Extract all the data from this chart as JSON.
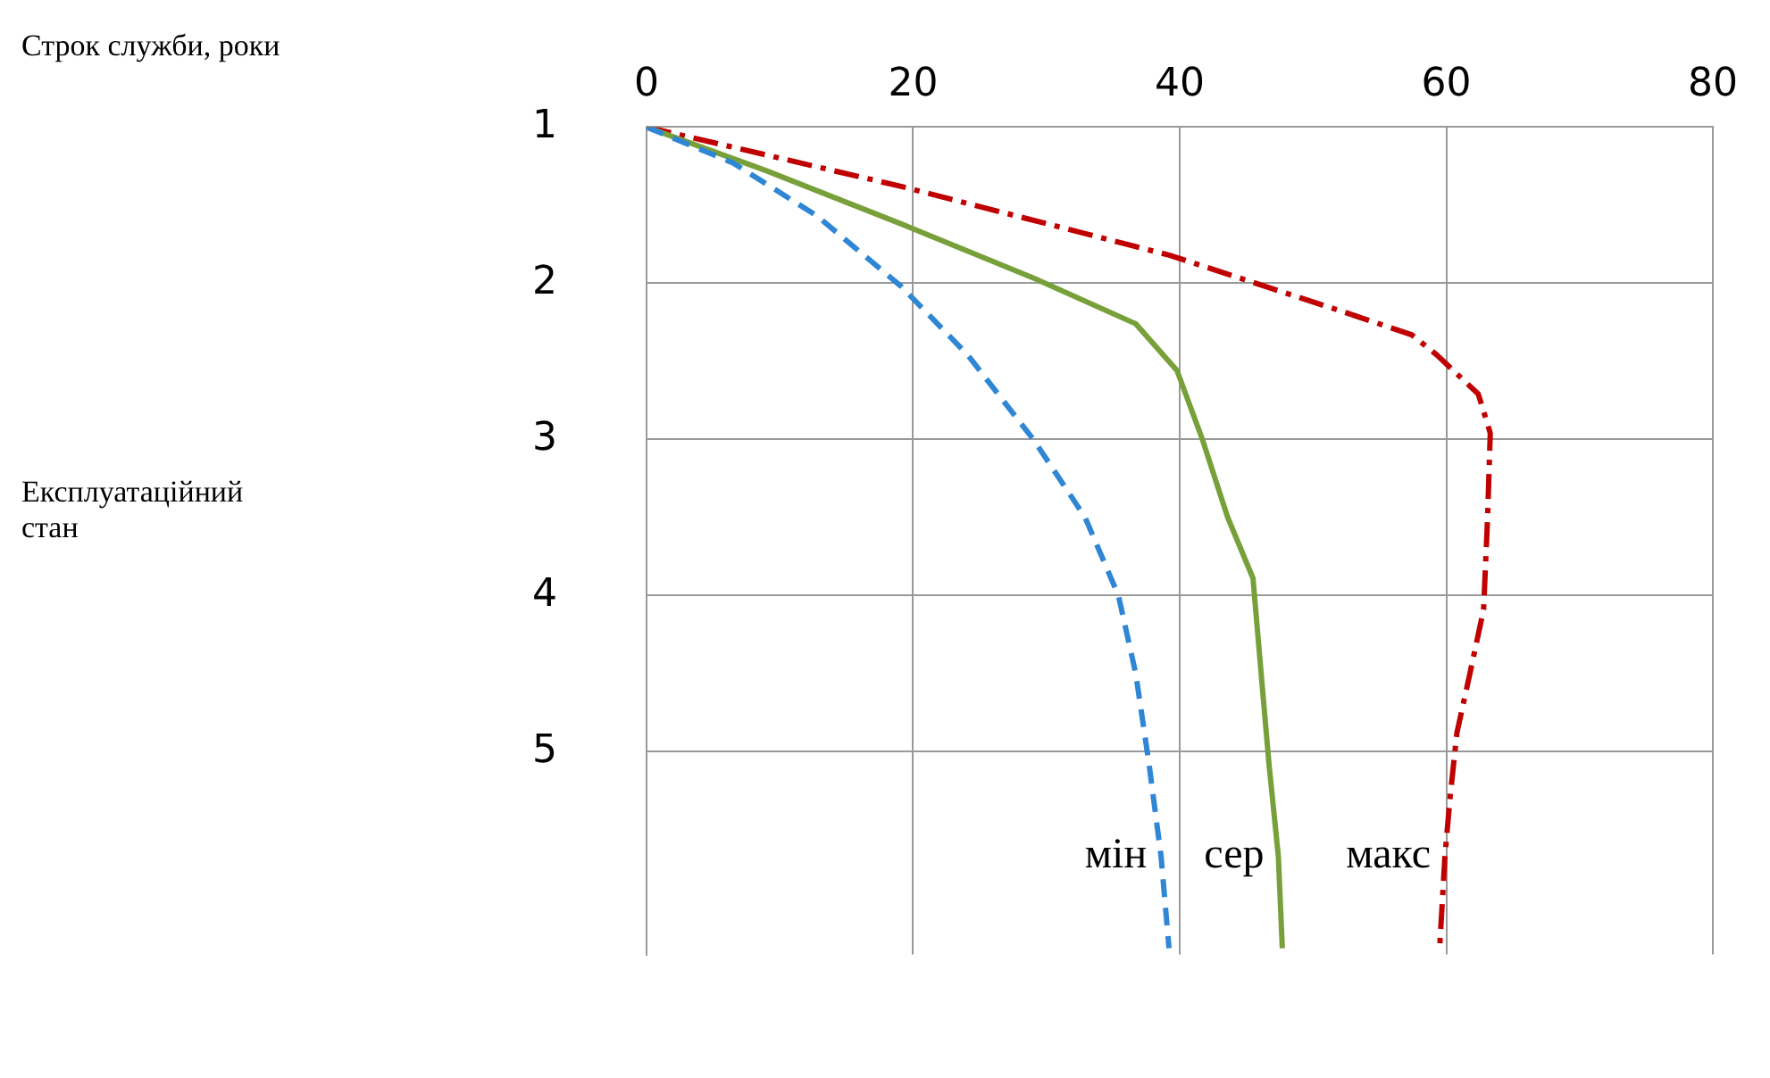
{
  "chart_data": {
    "type": "line",
    "annotations": [
      "Строк служби, роки",
      "Експлуатаційний стан"
    ],
    "xlim": [
      0,
      80
    ],
    "xticks": [
      0,
      20,
      40,
      60,
      80
    ],
    "ylim": [
      6.3,
      1
    ],
    "yticks": [
      1,
      2,
      3,
      4,
      5
    ],
    "grid": true,
    "legend": false,
    "marker": "none",
    "series": [
      {
        "name": "мін",
        "color": "#2e86d4",
        "line_style": "dashed",
        "x": [
          0,
          6.5,
          12.8,
          19.1,
          24.1,
          29.1,
          32.9,
          35.4,
          36.7,
          37.7,
          38.6,
          39.2
        ],
        "values": [
          1,
          1.23,
          1.57,
          2.02,
          2.46,
          3.01,
          3.5,
          4.0,
          4.5,
          5.08,
          5.67,
          6.26
        ]
      },
      {
        "name": "сер",
        "color": "#77a03a",
        "line_style": "solid",
        "x": [
          0,
          9.0,
          19.1,
          29.1,
          36.7,
          39.8,
          41.7,
          43.6,
          45.5,
          46.1,
          46.7,
          47.4,
          47.7
        ],
        "values": [
          1,
          1.28,
          1.62,
          1.97,
          2.26,
          2.56,
          3.0,
          3.5,
          3.89,
          4.49,
          5.08,
          5.67,
          6.26
        ]
      },
      {
        "name": "макс",
        "color": "#c00000",
        "line_style": "dashdot",
        "x": [
          0,
          19.1,
          39.2,
          51.8,
          57.4,
          59.3,
          62.4,
          63.3,
          63.1,
          62.8,
          61.8,
          60.8,
          60.3,
          59.9,
          59.5
        ],
        "values": [
          1,
          1.38,
          1.82,
          2.17,
          2.33,
          2.46,
          2.71,
          2.96,
          3.5,
          4.09,
          4.49,
          4.88,
          5.28,
          5.67,
          6.26
        ]
      }
    ]
  }
}
